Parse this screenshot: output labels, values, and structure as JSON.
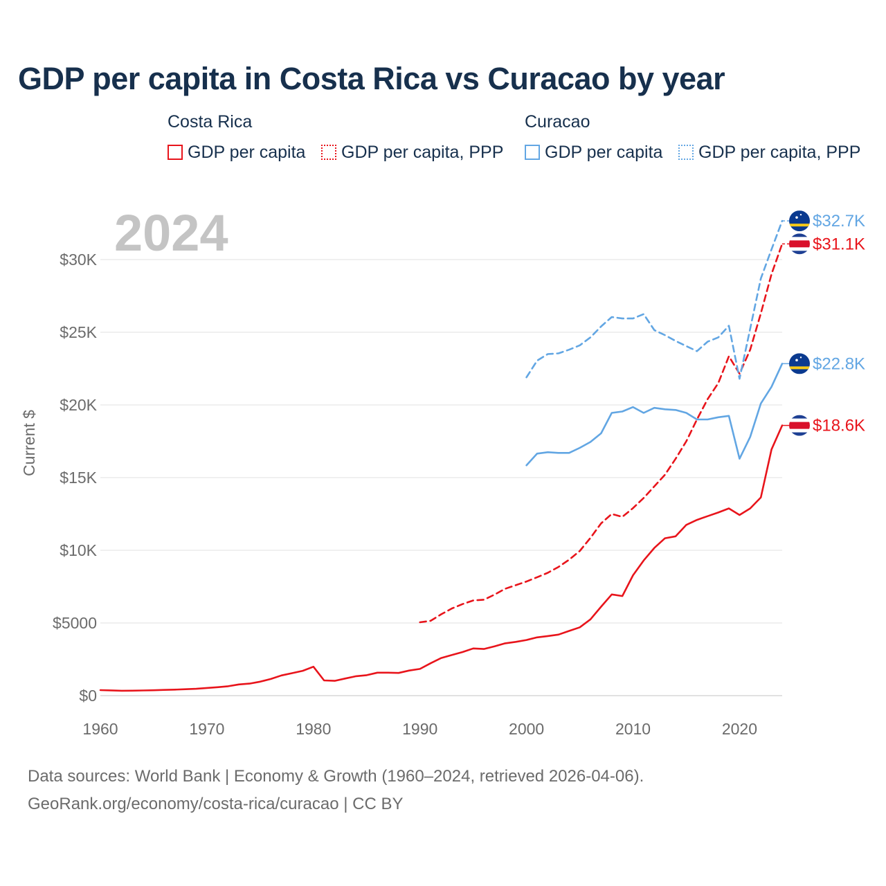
{
  "title": "GDP per capita in Costa Rica vs Curacao by year",
  "legend": {
    "groups": [
      {
        "country": "Costa Rica",
        "color": "#e8141b",
        "items": [
          {
            "label": "GDP per capita",
            "style": "solid"
          },
          {
            "label": "GDP per capita, PPP",
            "style": "dotted"
          }
        ]
      },
      {
        "country": "Curacao",
        "color": "#62a6e3",
        "items": [
          {
            "label": "GDP per capita",
            "style": "solid"
          },
          {
            "label": "GDP per capita, PPP",
            "style": "dotted"
          }
        ]
      }
    ]
  },
  "year_watermark": "2024",
  "source_lines": [
    "Data sources: World Bank | Economy & Growth (1960–2024, retrieved 2026-04-06).",
    "GeoRank.org/economy/costa-rica/curacao | CC BY"
  ],
  "chart_data": {
    "type": "line",
    "title": "GDP per capita in Costa Rica vs Curacao by year",
    "xlabel": "",
    "ylabel": "Current $",
    "xlim": [
      1960,
      2024
    ],
    "ylim": [
      0,
      31000
    ],
    "grid": true,
    "x_ticks": [
      1960,
      1970,
      1980,
      1990,
      2000,
      2010,
      2020
    ],
    "y_ticks": [
      {
        "value": 0,
        "label": "$0"
      },
      {
        "value": 5000,
        "label": "$5000"
      },
      {
        "value": 10000,
        "label": "$10K"
      },
      {
        "value": 15000,
        "label": "$15K"
      },
      {
        "value": 20000,
        "label": "$20K"
      },
      {
        "value": 25000,
        "label": "$25K"
      },
      {
        "value": 30000,
        "label": "$30K"
      }
    ],
    "series": [
      {
        "name": "Costa Rica GDP per capita",
        "country": "Costa Rica",
        "color": "#e8141b",
        "dash": "solid",
        "end_label": "$18.6K",
        "flag": "costa-rica",
        "x": [
          1960,
          1961,
          1962,
          1963,
          1964,
          1965,
          1966,
          1967,
          1968,
          1969,
          1970,
          1971,
          1972,
          1973,
          1974,
          1975,
          1976,
          1977,
          1978,
          1979,
          1980,
          1981,
          1982,
          1983,
          1984,
          1985,
          1986,
          1987,
          1988,
          1989,
          1990,
          1991,
          1992,
          1993,
          1994,
          1995,
          1996,
          1997,
          1998,
          1999,
          2000,
          2001,
          2002,
          2003,
          2004,
          2005,
          2006,
          2007,
          2008,
          2009,
          2010,
          2011,
          2012,
          2013,
          2014,
          2015,
          2016,
          2017,
          2018,
          2019,
          2020,
          2021,
          2022,
          2023,
          2024
        ],
        "values": [
          380,
          360,
          340,
          345,
          355,
          370,
          395,
          415,
          445,
          470,
          530,
          580,
          650,
          770,
          830,
          960,
          1150,
          1390,
          1550,
          1710,
          1990,
          1050,
          1020,
          1180,
          1340,
          1410,
          1580,
          1580,
          1560,
          1730,
          1840,
          2230,
          2590,
          2800,
          3000,
          3250,
          3210,
          3390,
          3600,
          3700,
          3830,
          4010,
          4100,
          4200,
          4450,
          4700,
          5250,
          6120,
          6960,
          6850,
          8280,
          9300,
          10160,
          10830,
          10960,
          11750,
          12090,
          12350,
          12600,
          12880,
          12430,
          12880,
          13640,
          16940,
          18590
        ]
      },
      {
        "name": "Costa Rica GDP per capita, PPP",
        "country": "Costa Rica",
        "color": "#e8141b",
        "dash": "dashed",
        "end_label": "$31.1K",
        "flag": "costa-rica",
        "x": [
          1990,
          1991,
          1992,
          1993,
          1994,
          1995,
          1996,
          1997,
          1998,
          1999,
          2000,
          2001,
          2002,
          2003,
          2004,
          2005,
          2006,
          2007,
          2008,
          2009,
          2010,
          2011,
          2012,
          2013,
          2014,
          2015,
          2016,
          2017,
          2018,
          2019,
          2020,
          2021,
          2022,
          2023,
          2024
        ],
        "values": [
          5050,
          5150,
          5600,
          6000,
          6300,
          6550,
          6600,
          6950,
          7350,
          7600,
          7850,
          8150,
          8450,
          8850,
          9350,
          9950,
          10850,
          11850,
          12500,
          12300,
          12900,
          13600,
          14400,
          15200,
          16300,
          17500,
          19000,
          20400,
          21500,
          23350,
          22150,
          23800,
          26300,
          29000,
          31080
        ]
      },
      {
        "name": "Curacao GDP per capita",
        "country": "Curacao",
        "color": "#62a6e3",
        "dash": "solid",
        "end_label": "$22.8K",
        "flag": "curacao",
        "x": [
          2000,
          2001,
          2002,
          2003,
          2004,
          2005,
          2006,
          2007,
          2008,
          2009,
          2010,
          2011,
          2012,
          2013,
          2014,
          2015,
          2016,
          2017,
          2018,
          2019,
          2020,
          2021,
          2022,
          2023,
          2024
        ],
        "values": [
          15850,
          16650,
          16750,
          16700,
          16700,
          17050,
          17450,
          18050,
          19450,
          19550,
          19850,
          19450,
          19800,
          19700,
          19650,
          19450,
          19000,
          19000,
          19150,
          19250,
          16300,
          17800,
          20100,
          21250,
          22840
        ]
      },
      {
        "name": "Curacao GDP per capita, PPP",
        "country": "Curacao",
        "color": "#62a6e3",
        "dash": "dashed",
        "end_label": "$32.7K",
        "flag": "curacao",
        "x": [
          2000,
          2001,
          2002,
          2003,
          2004,
          2005,
          2006,
          2007,
          2008,
          2009,
          2010,
          2011,
          2012,
          2013,
          2014,
          2015,
          2016,
          2017,
          2018,
          2019,
          2020,
          2021,
          2022,
          2023,
          2024
        ],
        "values": [
          21900,
          23050,
          23500,
          23550,
          23800,
          24100,
          24650,
          25400,
          26050,
          25950,
          25950,
          26250,
          25150,
          24800,
          24400,
          24050,
          23700,
          24350,
          24650,
          25450,
          21800,
          25250,
          28700,
          30700,
          32660
        ]
      }
    ]
  }
}
